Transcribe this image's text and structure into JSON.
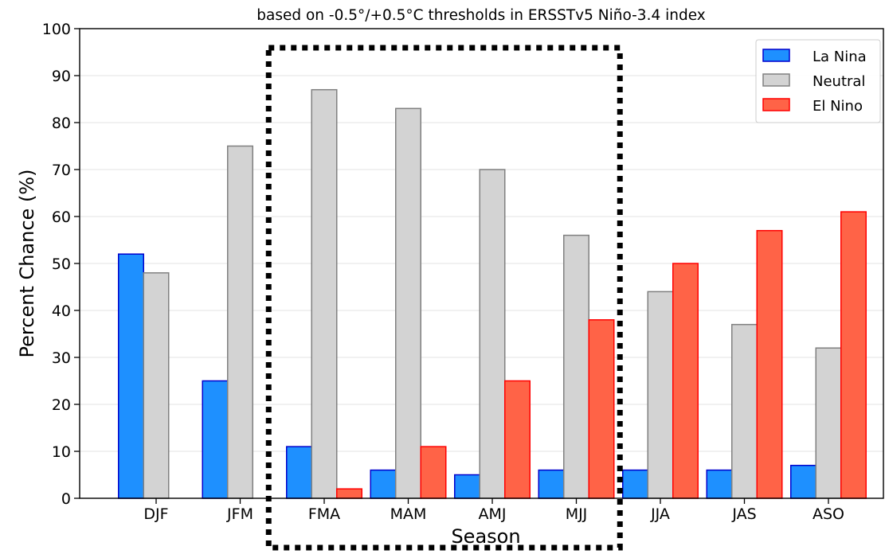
{
  "chart_data": {
    "type": "bar",
    "title": "based on -0.5°/+0.5°C thresholds in ERSSTv5 Niño-3.4 index",
    "xlabel": "Season",
    "ylabel": "Percent Chance (%)",
    "ylim": [
      0,
      100
    ],
    "yticks": [
      "0",
      "10",
      "20",
      "30",
      "40",
      "50",
      "60",
      "70",
      "80",
      "90",
      "100"
    ],
    "grid": "horizontal",
    "legend_position": "top-right",
    "categories": [
      "DJF",
      "JFM",
      "FMA",
      "MAM",
      "AMJ",
      "MJJ",
      "JJA",
      "JAS",
      "ASO"
    ],
    "series": [
      {
        "name": "La Nina",
        "values": [
          52,
          25,
          11,
          6,
          5,
          6,
          6,
          6,
          7
        ],
        "fill": "#1e90ff",
        "edge": "#0000cd"
      },
      {
        "name": "Neutral",
        "values": [
          48,
          75,
          87,
          83,
          70,
          56,
          44,
          37,
          32
        ],
        "fill": "#d3d3d3",
        "edge": "#808080"
      },
      {
        "name": "El Nino",
        "values": [
          0,
          0,
          2,
          11,
          25,
          38,
          50,
          57,
          61
        ],
        "fill": "#ff6347",
        "edge": "#ff0000"
      }
    ],
    "highlight": {
      "style": "dotted-box",
      "from_category": "FMA",
      "to_category": "MJJ"
    }
  }
}
